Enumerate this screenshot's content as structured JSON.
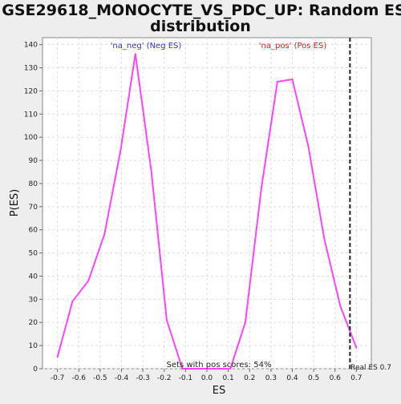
{
  "chart_data": {
    "type": "line",
    "title_line1": "GSE29618_MONOCYTE_VS_PDC_UP: Random ES",
    "title_line2": "distribution",
    "xlabel": "ES",
    "ylabel": "P(ES)",
    "xlim": [
      -0.77,
      0.77
    ],
    "ylim": [
      0,
      143
    ],
    "x_ticks": [
      -0.7,
      -0.6,
      -0.5,
      -0.4,
      -0.3,
      -0.2,
      -0.1,
      0.0,
      0.1,
      0.2,
      0.3,
      0.4,
      0.5,
      0.6,
      0.7
    ],
    "x_tick_labels": [
      "-0.7",
      "-0.6",
      "-0.5",
      "-0.4",
      "-0.3",
      "-0.2",
      "-0.1",
      "0.0",
      "0.1",
      "0.2",
      "0.3",
      "0.4",
      "0.5",
      "0.6",
      "0.7"
    ],
    "y_ticks": [
      0,
      10,
      20,
      30,
      40,
      50,
      60,
      70,
      80,
      90,
      100,
      110,
      120,
      130,
      140
    ],
    "y_tick_labels": [
      "0",
      "10",
      "20",
      "30",
      "40",
      "50",
      "60",
      "70",
      "80",
      "90",
      "100",
      "110",
      "120",
      "130",
      "140"
    ],
    "grid": true,
    "series": [
      {
        "color": "#ff44ff",
        "x": [
          -0.7,
          -0.63,
          -0.555,
          -0.48,
          -0.405,
          -0.335,
          -0.26,
          -0.188,
          -0.115,
          -0.04,
          0.035,
          0.11,
          0.18,
          0.255,
          0.33,
          0.4,
          0.475,
          0.55,
          0.625,
          0.7
        ],
        "y": [
          5,
          29,
          38,
          58,
          94,
          136,
          85,
          21,
          0,
          0,
          0,
          0,
          20,
          78,
          124,
          125,
          96,
          56,
          27,
          9
        ]
      }
    ],
    "real_es": 0.67,
    "annotations": {
      "neg_label": "'na_neg' (Neg ES)",
      "pos_label": "'na_pos' (Pos ES)",
      "pos_scores": "Sets with pos scores: 54%",
      "real_es_label": "Real ES 0.7"
    },
    "colors": {
      "neg": "#3333bb",
      "pos": "#cc2222",
      "line": "#ff44ff",
      "grid": "#dddddd",
      "plot_bg": "#ffffff",
      "page_bg": "#eeeeee"
    }
  }
}
